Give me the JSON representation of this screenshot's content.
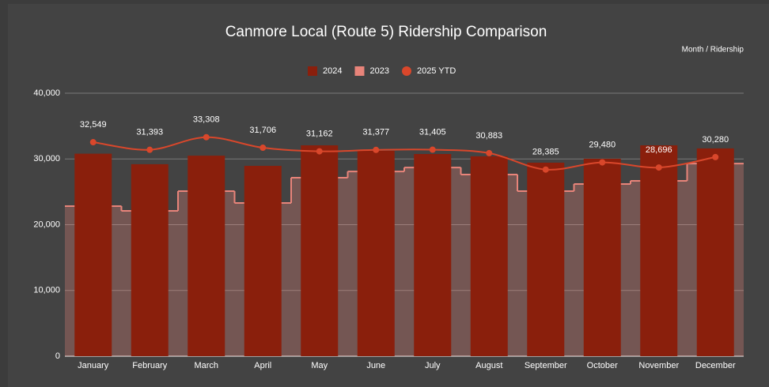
{
  "chart_data": {
    "type": "combo",
    "title": "Canmore Local (Route 5) Ridership Comparison",
    "axis_note": "Month / Ridership",
    "categories": [
      "January",
      "February",
      "March",
      "April",
      "May",
      "June",
      "July",
      "August",
      "September",
      "October",
      "November",
      "December"
    ],
    "series": [
      {
        "name": "2024",
        "kind": "bar",
        "color": "#8a1f0c",
        "values": [
          30800,
          29200,
          30500,
          28950,
          32070,
          31230,
          30750,
          30400,
          29430,
          30030,
          32070,
          31600
        ]
      },
      {
        "name": "2023",
        "kind": "stepped-area",
        "color": "#e8847a",
        "values": [
          22820,
          22100,
          25100,
          23300,
          27150,
          28100,
          28700,
          27630,
          25100,
          26190,
          26670,
          29300
        ]
      },
      {
        "name": "2025 YTD",
        "kind": "line",
        "color": "#d9472b",
        "values": [
          32549,
          31393,
          33308,
          31706,
          31162,
          31377,
          31405,
          30883,
          28385,
          29480,
          28696,
          30280
        ],
        "value_labels": [
          "32,549",
          "31,393",
          "33,308",
          "31,706",
          "31,162",
          "31,377",
          "31,405",
          "30,883",
          "28,385",
          "29,480",
          "28,696",
          "30,280"
        ]
      }
    ],
    "ylim": [
      0,
      40000
    ],
    "yticks": [
      0,
      {
        "value": 10000,
        "label": "10,000"
      },
      {
        "value": 20000,
        "label": "20,000"
      },
      {
        "value": 30000,
        "label": "30,000"
      },
      {
        "value": 40000,
        "label": "40,000"
      }
    ],
    "grid": true
  }
}
